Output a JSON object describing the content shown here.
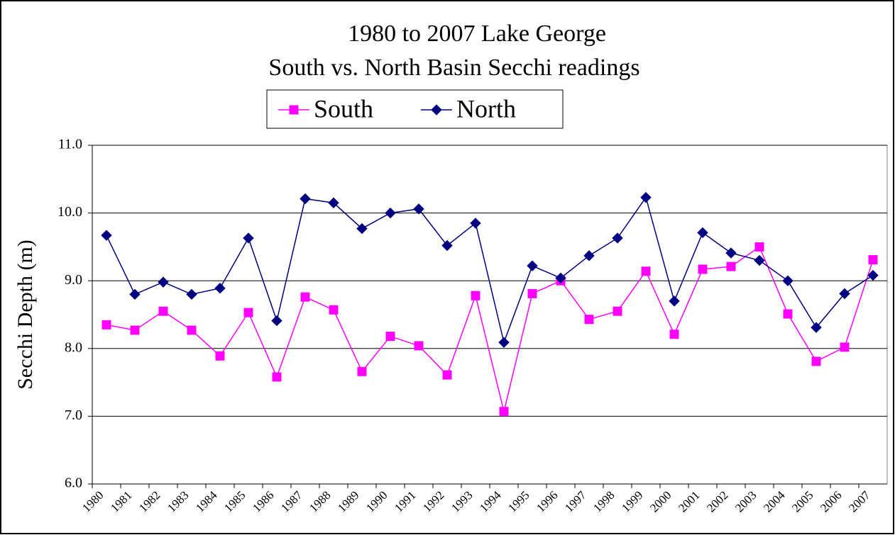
{
  "chart_data": {
    "type": "line",
    "title": "1980 to 2007 Lake George",
    "subtitle": "South vs. North Basin Secchi readings",
    "y_label": "Secchi Depth (m)",
    "categories": [
      "1980",
      "1981",
      "1982",
      "1983",
      "1984",
      "1985",
      "1986",
      "1987",
      "1988",
      "1989",
      "1990",
      "1991",
      "1992",
      "1993",
      "1994",
      "1995",
      "1996",
      "1997",
      "1998",
      "1999",
      "2000",
      "2001",
      "2002",
      "2003",
      "2004",
      "2005",
      "2006",
      "2007"
    ],
    "series": [
      {
        "name": "South",
        "color": "#ff00ff",
        "marker": "square",
        "values": [
          8.35,
          8.27,
          8.55,
          8.27,
          7.89,
          8.53,
          7.58,
          8.76,
          8.57,
          7.66,
          8.18,
          8.04,
          7.61,
          8.78,
          7.07,
          8.81,
          9.0,
          8.43,
          8.55,
          9.14,
          8.21,
          9.17,
          9.21,
          9.5,
          8.51,
          7.81,
          8.02,
          9.31
        ]
      },
      {
        "name": "North",
        "color": "#000080",
        "marker": "diamond",
        "values": [
          9.67,
          8.8,
          8.98,
          8.8,
          8.89,
          9.63,
          8.41,
          10.21,
          10.15,
          9.77,
          10.0,
          10.06,
          9.52,
          9.85,
          8.09,
          9.22,
          9.04,
          9.37,
          9.63,
          10.23,
          8.7,
          9.71,
          9.41,
          9.3,
          9.0,
          8.31,
          8.81,
          9.08
        ]
      }
    ],
    "ylim": [
      6,
      11
    ],
    "yticks": [
      {
        "value": 6,
        "label": "6.0"
      },
      {
        "value": 7,
        "label": "7.0"
      },
      {
        "value": 8,
        "label": "8.0"
      },
      {
        "value": 9,
        "label": "9.0"
      },
      {
        "value": 10,
        "label": "10.0"
      },
      {
        "value": 11,
        "label": "11.0"
      }
    ],
    "grid": true,
    "legend": "top"
  }
}
